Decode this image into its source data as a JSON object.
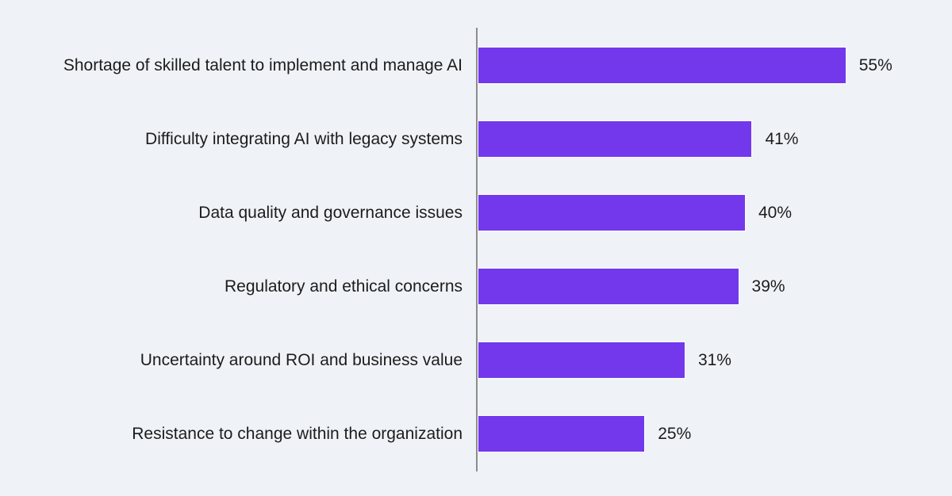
{
  "chart_data": {
    "type": "bar",
    "orientation": "horizontal",
    "title": "",
    "categories": [
      "Shortage of skilled talent to implement and manage AI",
      "Difficulty integrating AI with legacy systems",
      "Data quality and governance issues",
      "Regulatory and ethical concerns",
      "Uncertainty around ROI and business value",
      "Resistance to change within the organization"
    ],
    "values": [
      55,
      41,
      40,
      39,
      31,
      25
    ],
    "value_labels": [
      "55%",
      "41%",
      "40%",
      "39%",
      "31%",
      "25%"
    ],
    "value_suffix": "%",
    "xlabel": "",
    "ylabel": "",
    "xlim": [
      0,
      66
    ],
    "grid": false,
    "legend": false,
    "colors": {
      "bar": "#7338EC",
      "bar_border": "#FDFDFE",
      "axis": "#8C8C8C",
      "background": "#EFF3F8",
      "text": "#1C1C1C"
    }
  }
}
